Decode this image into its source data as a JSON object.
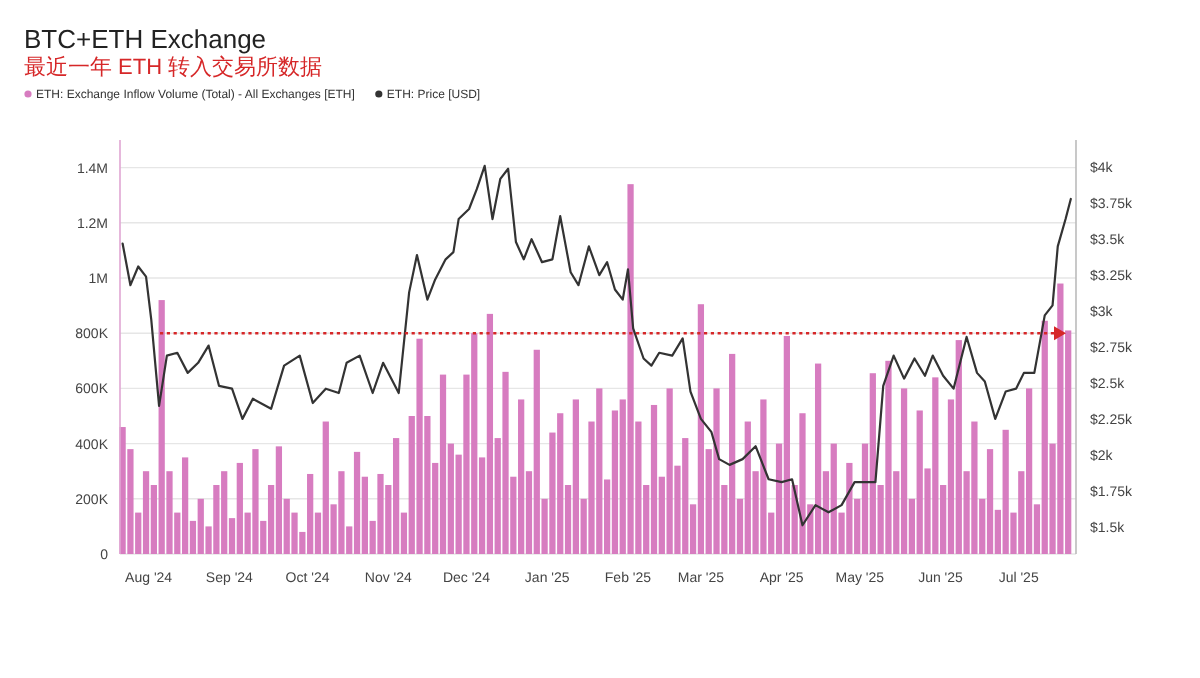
{
  "chart_data": {
    "type": "bar",
    "title": "BTC+ETH Exchange",
    "subtitle": "最近一年 ETH 转入交易所数据",
    "legend": "top left",
    "grid": "y",
    "xlim": [
      "2024-07-21",
      "2025-07-23"
    ],
    "xticks": [
      {
        "value": "2024-08-01",
        "label": "Aug '24"
      },
      {
        "value": "2024-09-01",
        "label": "Sep '24"
      },
      {
        "value": "2024-10-01",
        "label": "Oct '24"
      },
      {
        "value": "2024-11-01",
        "label": "Nov '24"
      },
      {
        "value": "2024-12-01",
        "label": "Dec '24"
      },
      {
        "value": "2025-01-01",
        "label": "Jan '25"
      },
      {
        "value": "2025-02-01",
        "label": "Feb '25"
      },
      {
        "value": "2025-03-01",
        "label": "Mar '25"
      },
      {
        "value": "2025-04-01",
        "label": "Apr '25"
      },
      {
        "value": "2025-05-01",
        "label": "May '25"
      },
      {
        "value": "2025-06-01",
        "label": "Jun '25"
      },
      {
        "value": "2025-07-01",
        "label": "Jul '25"
      }
    ],
    "ylim": [
      0,
      1500000
    ],
    "yticks": [
      0,
      {
        "value": 200000,
        "label": "200K"
      },
      {
        "value": 400000,
        "label": "400K"
      },
      {
        "value": 600000,
        "label": "600K"
      },
      {
        "value": 800000,
        "label": "800K"
      },
      {
        "value": 1000000,
        "label": "1M"
      },
      {
        "value": 1200000,
        "label": "1.2M"
      },
      {
        "value": 1400000,
        "label": "1.4M"
      }
    ],
    "y2lim": [
      1310,
      4190
    ],
    "y2ticks": [
      {
        "value": 1500,
        "label": "$1.5k"
      },
      {
        "value": 1750,
        "label": "$1.75k"
      },
      {
        "value": 2000,
        "label": "$2k"
      },
      {
        "value": 2250,
        "label": "$2.25k"
      },
      {
        "value": 2500,
        "label": "$2.5k"
      },
      {
        "value": 2750,
        "label": "$2.75k"
      },
      {
        "value": 3000,
        "label": "$3k"
      },
      {
        "value": 3250,
        "label": "$3.25k"
      },
      {
        "value": 3500,
        "label": "$3.5k"
      },
      {
        "value": 3750,
        "label": "$3.75k"
      },
      {
        "value": 4000,
        "label": "$4k"
      }
    ],
    "series": [
      {
        "name": "ETH: Exchange Inflow Volume (Total) - All Exchanges [ETH]",
        "color": "#d77cc0",
        "x": [
          "2024-07-22",
          "2024-07-25",
          "2024-07-28",
          "2024-07-31",
          "2024-08-03",
          "2024-08-06",
          "2024-08-09",
          "2024-08-12",
          "2024-08-15",
          "2024-08-18",
          "2024-08-21",
          "2024-08-24",
          "2024-08-27",
          "2024-08-30",
          "2024-09-02",
          "2024-09-05",
          "2024-09-08",
          "2024-09-11",
          "2024-09-14",
          "2024-09-17",
          "2024-09-20",
          "2024-09-23",
          "2024-09-26",
          "2024-09-29",
          "2024-10-02",
          "2024-10-05",
          "2024-10-08",
          "2024-10-11",
          "2024-10-14",
          "2024-10-17",
          "2024-10-20",
          "2024-10-23",
          "2024-10-26",
          "2024-10-29",
          "2024-11-01",
          "2024-11-04",
          "2024-11-07",
          "2024-11-10",
          "2024-11-13",
          "2024-11-16",
          "2024-11-19",
          "2024-11-22",
          "2024-11-25",
          "2024-11-28",
          "2024-12-01",
          "2024-12-04",
          "2024-12-07",
          "2024-12-10",
          "2024-12-13",
          "2024-12-16",
          "2024-12-19",
          "2024-12-22",
          "2024-12-25",
          "2024-12-28",
          "2024-12-31",
          "2025-01-03",
          "2025-01-06",
          "2025-01-09",
          "2025-01-12",
          "2025-01-15",
          "2025-01-18",
          "2025-01-21",
          "2025-01-24",
          "2025-01-27",
          "2025-01-30",
          "2025-02-02",
          "2025-02-05",
          "2025-02-08",
          "2025-02-11",
          "2025-02-14",
          "2025-02-17",
          "2025-02-20",
          "2025-02-23",
          "2025-02-26",
          "2025-03-01",
          "2025-03-04",
          "2025-03-07",
          "2025-03-10",
          "2025-03-13",
          "2025-03-16",
          "2025-03-19",
          "2025-03-22",
          "2025-03-25",
          "2025-03-28",
          "2025-03-31",
          "2025-04-03",
          "2025-04-06",
          "2025-04-09",
          "2025-04-12",
          "2025-04-15",
          "2025-04-18",
          "2025-04-21",
          "2025-04-24",
          "2025-04-27",
          "2025-04-30",
          "2025-05-03",
          "2025-05-06",
          "2025-05-09",
          "2025-05-12",
          "2025-05-15",
          "2025-05-18",
          "2025-05-21",
          "2025-05-24",
          "2025-05-27",
          "2025-05-30",
          "2025-06-02",
          "2025-06-05",
          "2025-06-08",
          "2025-06-11",
          "2025-06-14",
          "2025-06-17",
          "2025-06-20",
          "2025-06-23",
          "2025-06-26",
          "2025-06-29",
          "2025-07-02",
          "2025-07-05",
          "2025-07-08",
          "2025-07-11",
          "2025-07-14",
          "2025-07-17",
          "2025-07-20"
        ],
        "values": [
          460000,
          380000,
          150000,
          300000,
          250000,
          920000,
          300000,
          150000,
          350000,
          120000,
          200000,
          100000,
          250000,
          300000,
          130000,
          330000,
          150000,
          380000,
          120000,
          250000,
          390000,
          200000,
          150000,
          80000,
          290000,
          150000,
          480000,
          180000,
          300000,
          100000,
          370000,
          280000,
          120000,
          290000,
          250000,
          420000,
          150000,
          500000,
          780000,
          500000,
          330000,
          650000,
          400000,
          360000,
          650000,
          800000,
          350000,
          870000,
          420000,
          660000,
          280000,
          560000,
          300000,
          740000,
          200000,
          440000,
          510000,
          250000,
          560000,
          200000,
          480000,
          600000,
          270000,
          520000,
          560000,
          1340000,
          480000,
          250000,
          540000,
          280000,
          600000,
          320000,
          420000,
          180000,
          905000,
          380000,
          600000,
          250000,
          725000,
          200000,
          480000,
          300000,
          560000,
          150000,
          400000,
          790000,
          250000,
          510000,
          180000,
          690000,
          300000,
          400000,
          150000,
          330000,
          200000,
          400000,
          655000,
          250000,
          700000,
          300000,
          600000,
          200000,
          520000,
          310000,
          640000,
          250000,
          560000,
          775000,
          300000,
          480000,
          200000,
          380000,
          160000,
          450000,
          150000,
          300000,
          600000,
          180000,
          845000,
          400000,
          980000,
          810000
        ]
      },
      {
        "name": "ETH: Price [USD]",
        "type": "line",
        "axis": "y2",
        "color": "#333333",
        "line_style": "solid",
        "x": [
          "2024-07-22",
          "2024-07-25",
          "2024-07-28",
          "2024-07-31",
          "2024-08-02",
          "2024-08-05",
          "2024-08-08",
          "2024-08-12",
          "2024-08-16",
          "2024-08-20",
          "2024-08-24",
          "2024-08-28",
          "2024-09-02",
          "2024-09-06",
          "2024-09-10",
          "2024-09-17",
          "2024-09-22",
          "2024-09-28",
          "2024-10-03",
          "2024-10-08",
          "2024-10-13",
          "2024-10-16",
          "2024-10-21",
          "2024-10-26",
          "2024-10-30",
          "2024-11-05",
          "2024-11-09",
          "2024-11-12",
          "2024-11-16",
          "2024-11-19",
          "2024-11-23",
          "2024-11-26",
          "2024-11-28",
          "2024-12-02",
          "2024-12-05",
          "2024-12-08",
          "2024-12-11",
          "2024-12-14",
          "2024-12-17",
          "2024-12-20",
          "2024-12-23",
          "2024-12-26",
          "2024-12-30",
          "2025-01-03",
          "2025-01-06",
          "2025-01-10",
          "2025-01-13",
          "2025-01-17",
          "2025-01-21",
          "2025-01-24",
          "2025-01-27",
          "2025-01-30",
          "2025-02-01",
          "2025-02-03",
          "2025-02-07",
          "2025-02-10",
          "2025-02-13",
          "2025-02-18",
          "2025-02-22",
          "2025-02-25",
          "2025-03-01",
          "2025-03-05",
          "2025-03-08",
          "2025-03-12",
          "2025-03-17",
          "2025-03-22",
          "2025-03-27",
          "2025-04-01",
          "2025-04-05",
          "2025-04-09",
          "2025-04-14",
          "2025-04-19",
          "2025-04-24",
          "2025-04-29",
          "2025-05-07",
          "2025-05-10",
          "2025-05-14",
          "2025-05-18",
          "2025-05-22",
          "2025-05-26",
          "2025-05-29",
          "2025-06-02",
          "2025-06-06",
          "2025-06-11",
          "2025-06-15",
          "2025-06-18",
          "2025-06-22",
          "2025-06-26",
          "2025-06-30",
          "2025-07-03",
          "2025-07-07",
          "2025-07-11",
          "2025-07-14",
          "2025-07-16",
          "2025-07-19",
          "2025-07-21"
        ],
        "values": [
          3470,
          3180,
          3310,
          3240,
          2940,
          2340,
          2690,
          2710,
          2570,
          2640,
          2760,
          2480,
          2460,
          2250,
          2390,
          2320,
          2620,
          2690,
          2360,
          2460,
          2430,
          2640,
          2690,
          2430,
          2640,
          2430,
          3130,
          3390,
          3080,
          3220,
          3360,
          3410,
          3640,
          3710,
          3850,
          4010,
          3640,
          3920,
          3990,
          3480,
          3360,
          3500,
          3340,
          3360,
          3660,
          3270,
          3180,
          3450,
          3250,
          3340,
          3150,
          3080,
          3290,
          2880,
          2670,
          2620,
          2710,
          2690,
          2810,
          2440,
          2250,
          2160,
          1970,
          1930,
          1970,
          2060,
          1830,
          1810,
          1830,
          1510,
          1650,
          1600,
          1650,
          1810,
          1810,
          2480,
          2690,
          2530,
          2670,
          2550,
          2690,
          2550,
          2460,
          2820,
          2570,
          2510,
          2250,
          2440,
          2460,
          2570,
          2570,
          2970,
          3040,
          3450,
          3640,
          3780
        ]
      }
    ],
    "ref_lines": [
      {
        "axis": "y",
        "value": 800000,
        "color": "#d62728",
        "line_style": "dotted"
      }
    ]
  }
}
